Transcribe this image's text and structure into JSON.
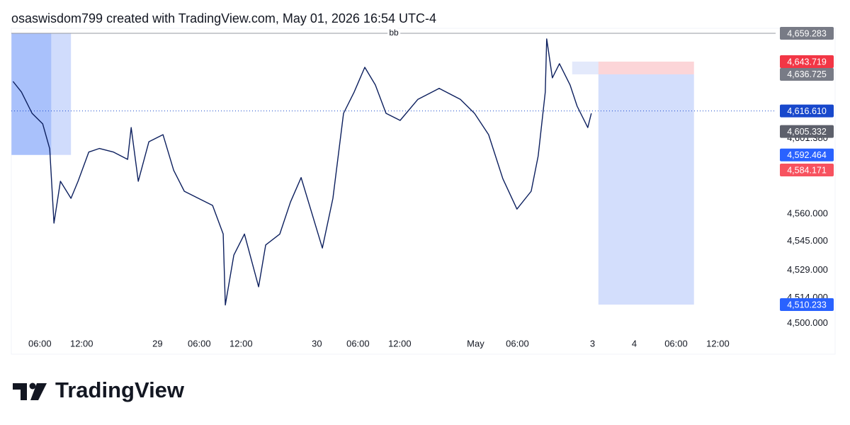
{
  "header": {
    "caption": "osaswisdom799 created with TradingView.com, May 01, 2026 16:54 UTC-4"
  },
  "chart_data": {
    "type": "line",
    "x": [
      2.14,
      3.36,
      4.88,
      6.41,
      7.42,
      8.03,
      8.95,
      10.47,
      11.49,
      13.02,
      14.54,
      16.58,
      18.61,
      19.12,
      20.14,
      21.66,
      23.69,
      25.22,
      26.75,
      28.78,
      30.81,
      32.34,
      32.64,
      33.86,
      35.39,
      37.42,
      38.44,
      40.47,
      42.0,
      43.53,
      45.05,
      46.58,
      48.1,
      49.63,
      51.15,
      52.68,
      54.2,
      55.73,
      57.76,
      60.31,
      63.36,
      66.41,
      68.44,
      70.47,
      72.51,
      74.54,
      76.58,
      77.59,
      78.61,
      78.81,
      79.63,
      80.64,
      82.17,
      83.19,
      84.71,
      85.22
    ],
    "values": [
      4632.8,
      4627,
      4615.3,
      4609.5,
      4595.8,
      4555,
      4578,
      4568.6,
      4578,
      4594,
      4596,
      4594,
      4590,
      4607.5,
      4578,
      4599.7,
      4603.6,
      4584,
      4572.5,
      4568.6,
      4564.7,
      4549,
      4510,
      4537.4,
      4549,
      4520,
      4543,
      4549,
      4566.6,
      4580,
      4560.8,
      4541.3,
      4568.6,
      4615.3,
      4627,
      4640.6,
      4630.9,
      4615.3,
      4611.4,
      4623,
      4629,
      4623,
      4615.3,
      4603.6,
      4579.4,
      4562.7,
      4572.5,
      4591.9,
      4627,
      4656.2,
      4634.8,
      4642.6,
      4630.9,
      4619.2,
      4607.5,
      4615.3
    ],
    "color": "#0c1f5e",
    "xlim": [
      1.9,
      111.7
    ],
    "ylim": [
      4483,
      4662
    ],
    "xticks": [
      {
        "value": 6,
        "label": "06:00"
      },
      {
        "value": 12,
        "label": "12:00"
      },
      {
        "value": 22.9,
        "label": "29"
      },
      {
        "value": 28.9,
        "label": "06:00"
      },
      {
        "value": 34.9,
        "label": "12:00"
      },
      {
        "value": 45.8,
        "label": "30"
      },
      {
        "value": 51.7,
        "label": "06:00"
      },
      {
        "value": 57.7,
        "label": "12:00"
      },
      {
        "value": 68.6,
        "label": "May"
      },
      {
        "value": 74.6,
        "label": "06:00"
      },
      {
        "value": 85.4,
        "label": "3"
      },
      {
        "value": 91.4,
        "label": "4"
      },
      {
        "value": 97.4,
        "label": "06:00"
      },
      {
        "value": 103.4,
        "label": "12:00"
      }
    ],
    "yticks": [
      {
        "value": 4500,
        "label": "4,500.000"
      },
      {
        "value": 4514,
        "label": "4,514.000"
      },
      {
        "value": 4529,
        "label": "4,529.000"
      },
      {
        "value": 4545,
        "label": "4,545.000"
      },
      {
        "value": 4560,
        "label": "4,560.000"
      },
      {
        "value": 4601.38,
        "label": "4,601.380"
      }
    ],
    "horizontal_line": {
      "label": "bb",
      "value": 4659.283
    },
    "price_labels": [
      {
        "value": 4659.283,
        "label": "4,659.283",
        "color": "#787b86"
      },
      {
        "value": 4643.719,
        "label": "4,643.719",
        "color": "#f23645"
      },
      {
        "value": 4636.725,
        "label": "4,636.725",
        "color": "#787b86"
      },
      {
        "value": 4616.61,
        "label": "4,616.610",
        "color": "#1848cc"
      },
      {
        "value": 4605.332,
        "label": "4,605.332",
        "color": "#5d606b"
      },
      {
        "value": 4592.464,
        "label": "4,592.464",
        "color": "#2962ff"
      },
      {
        "value": 4584.171,
        "label": "4,584.171",
        "color": "#f7525f"
      },
      {
        "value": 4510.233,
        "label": "4,510.233",
        "color": "#2962ff"
      }
    ],
    "boxes": [
      {
        "x": [
          1.93,
          10.47
        ],
        "y": [
          4592.464,
          4659.283
        ],
        "color": "#d0dcfc"
      },
      {
        "x": [
          1.93,
          7.63
        ],
        "y": [
          4592.464,
          4659.283
        ],
        "color": "#a9c1fb"
      },
      {
        "x": [
          82.47,
          90.3
        ],
        "y": [
          4636.725,
          4643.719
        ],
        "color": "#e3e9fb"
      },
      {
        "x": [
          86.24,
          99.97
        ],
        "y": [
          4636.725,
          4643.719
        ],
        "color": "#fcd5d8"
      },
      {
        "x": [
          86.24,
          99.97
        ],
        "y": [
          4510.233,
          4636.725
        ],
        "color": "#d3defc"
      }
    ]
  },
  "footer": {
    "logo": "TradingView"
  }
}
